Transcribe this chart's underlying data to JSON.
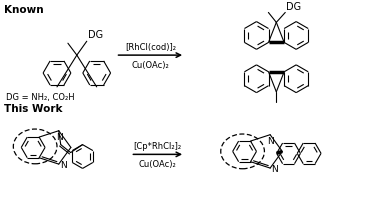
{
  "title_known": "Known",
  "title_work": "This Work",
  "arrow1_line1": "[RhCl(cod)]₂",
  "arrow1_line2": "Cu(OAc)₂",
  "arrow2_line1": "[Cp*RhCl₂]₂",
  "arrow2_line2": "Cu(OAc)₂",
  "dg_label": "DG",
  "dg_def": "DG = NH₂, CO₂H",
  "n_label": "N",
  "bg_color": "#ffffff",
  "line_color": "#000000",
  "figsize": [
    3.76,
    2.03
  ],
  "dpi": 100
}
